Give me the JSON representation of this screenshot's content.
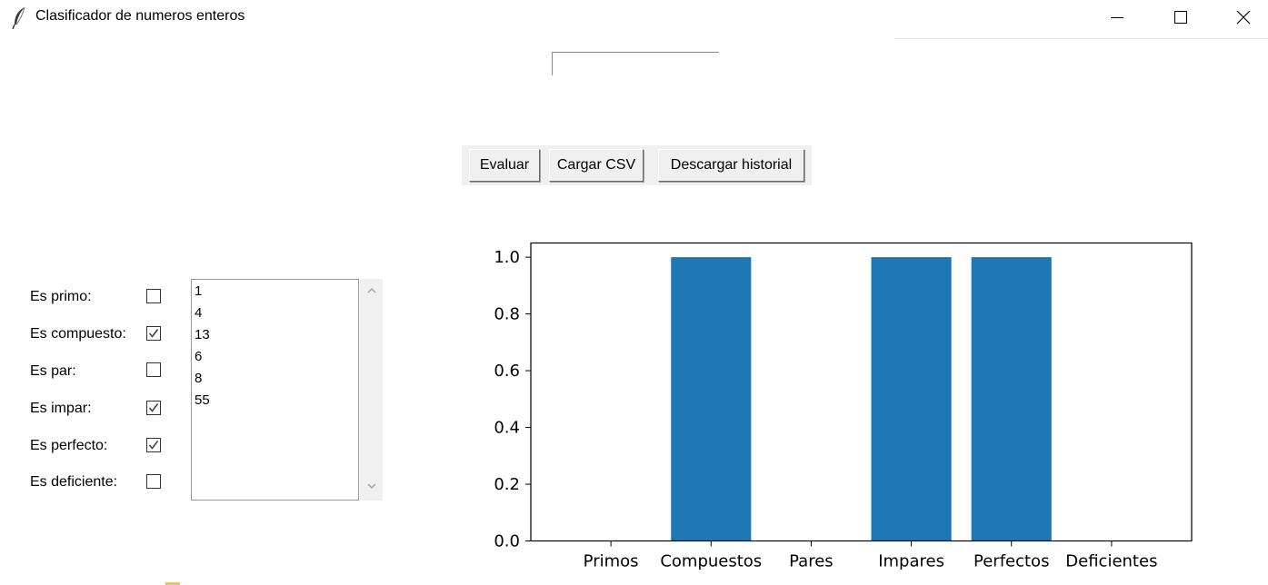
{
  "window": {
    "title": "Clasificador de numeros enteros",
    "icon": "feather-icon"
  },
  "entry": {
    "value": ""
  },
  "buttons": {
    "evaluate": "Evaluar",
    "load_csv": "Cargar CSV",
    "download_history": "Descargar historial"
  },
  "checkboxes": [
    {
      "label": "Es primo:",
      "checked": false
    },
    {
      "label": "Es compuesto:",
      "checked": true
    },
    {
      "label": "Es par:",
      "checked": false
    },
    {
      "label": "Es impar:",
      "checked": true
    },
    {
      "label": "Es perfecto:",
      "checked": true
    },
    {
      "label": "Es deficiente:",
      "checked": false
    }
  ],
  "history_list": [
    "1",
    "4",
    "13",
    "6",
    "8",
    "55"
  ],
  "chart_data": {
    "type": "bar",
    "categories": [
      "Primos",
      "Compuestos",
      "Pares",
      "Impares",
      "Perfectos",
      "Deficientes"
    ],
    "values": [
      0,
      1,
      0,
      1,
      1,
      0
    ],
    "ylim": [
      0,
      1.05
    ],
    "yticks": [
      "0.0",
      "0.2",
      "0.4",
      "0.6",
      "0.8",
      "1.0"
    ],
    "bar_color": "#1f77b4",
    "grid": false
  },
  "colors": {
    "button_face": "#f0f0f0",
    "bar": "#1f77b4"
  }
}
